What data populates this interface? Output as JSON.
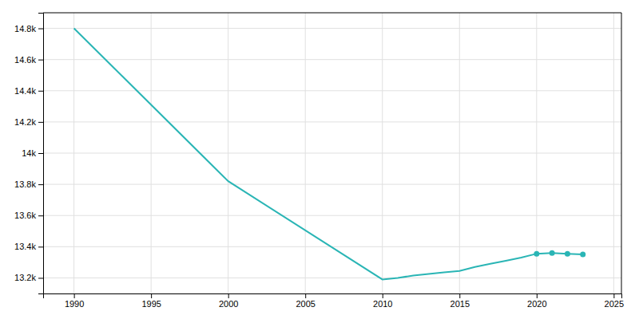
{
  "chart_data": {
    "type": "line",
    "x": [
      1990,
      2000,
      2010,
      2011,
      2012,
      2013,
      2014,
      2015,
      2016,
      2017,
      2018,
      2019,
      2020,
      2021,
      2022,
      2023
    ],
    "series": [
      {
        "type": "line",
        "color": "#2ab5b5",
        "values": [
          14800,
          13820,
          13190,
          13200,
          13215,
          13225,
          13235,
          13245,
          13270,
          13290,
          13310,
          13330,
          13355,
          13360,
          13355,
          13350
        ]
      },
      {
        "type": "scatter",
        "color": "#2ab5b5",
        "marker": "circle",
        "values": [
          null,
          null,
          null,
          null,
          null,
          null,
          null,
          null,
          null,
          null,
          null,
          null,
          13355,
          13360,
          13355,
          13350
        ]
      }
    ],
    "xlim": [
      1988,
      2025.5
    ],
    "ylim": [
      13100,
      14900
    ],
    "xticks": [
      1990,
      1995,
      2000,
      2005,
      2010,
      2015,
      2020,
      2025
    ],
    "yticks": [
      {
        "value": 13200,
        "label": "13.2k"
      },
      {
        "value": 13400,
        "label": "13.4k"
      },
      {
        "value": 13600,
        "label": "13.6k"
      },
      {
        "value": 13800,
        "label": "13.8k"
      },
      {
        "value": 14000,
        "label": "14k"
      },
      {
        "value": 14200,
        "label": "14.2k"
      },
      {
        "value": 14400,
        "label": "14.4k"
      },
      {
        "value": 14600,
        "label": "14.6k"
      },
      {
        "value": 14800,
        "label": "14.8k"
      }
    ],
    "grid": true
  }
}
